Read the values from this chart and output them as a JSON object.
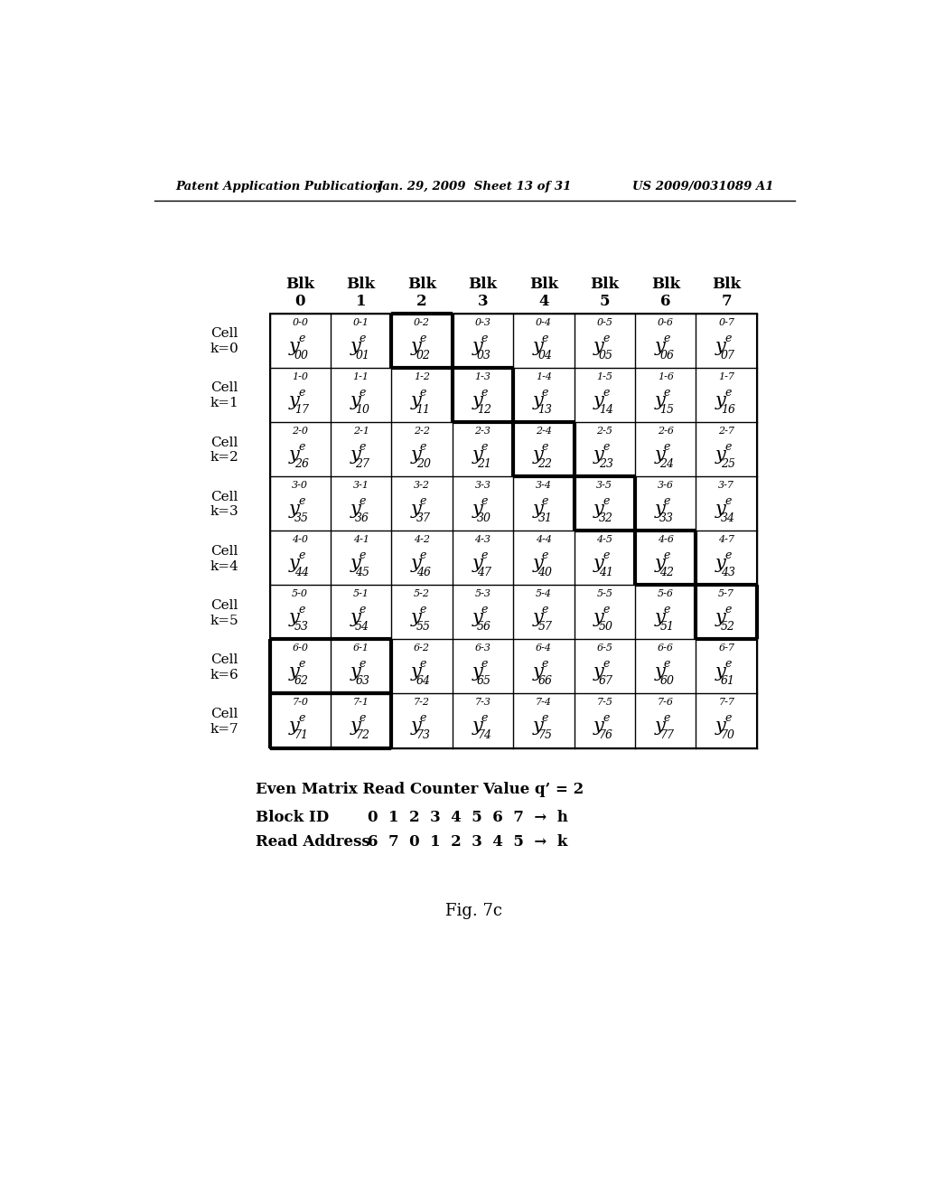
{
  "header_text_left": "Patent Application Publication",
  "header_text_mid": "Jan. 29, 2009  Sheet 13 of 31",
  "header_text_right": "US 2009/0031089 A1",
  "fig_label": "Fig. 7c",
  "caption_line1": "Even Matrix Read Counter Value q’ = 2",
  "caption_line2_label": "Block ID",
  "caption_line2_vals": "0  1  2  3  4  5  6  7  →  h",
  "caption_line3_label": "Read Address",
  "caption_line3_vals": "6  7  0  1  2  3  4  5  →  k",
  "col_headers": [
    "Blk\n0",
    "Blk\n1",
    "Blk\n2",
    "Blk\n3",
    "Blk\n4",
    "Blk\n5",
    "Blk\n6",
    "Blk\n7"
  ],
  "row_headers": [
    "Cell\nk=0",
    "Cell\nk=1",
    "Cell\nk=2",
    "Cell\nk=3",
    "Cell\nk=4",
    "Cell\nk=5",
    "Cell\nk=6",
    "Cell\nk=7"
  ],
  "cell_labels": [
    [
      "0-0",
      "0-1",
      "0-2",
      "0-3",
      "0-4",
      "0-5",
      "0-6",
      "0-7"
    ],
    [
      "1-0",
      "1-1",
      "1-2",
      "1-3",
      "1-4",
      "1-5",
      "1-6",
      "1-7"
    ],
    [
      "2-0",
      "2-1",
      "2-2",
      "2-3",
      "2-4",
      "2-5",
      "2-6",
      "2-7"
    ],
    [
      "3-0",
      "3-1",
      "3-2",
      "3-3",
      "3-4",
      "3-5",
      "3-6",
      "3-7"
    ],
    [
      "4-0",
      "4-1",
      "4-2",
      "4-3",
      "4-4",
      "4-5",
      "4-6",
      "4-7"
    ],
    [
      "5-0",
      "5-1",
      "5-2",
      "5-3",
      "5-4",
      "5-5",
      "5-6",
      "5-7"
    ],
    [
      "6-0",
      "6-1",
      "6-2",
      "6-3",
      "6-4",
      "6-5",
      "6-6",
      "6-7"
    ],
    [
      "7-0",
      "7-1",
      "7-2",
      "7-3",
      "7-4",
      "7-5",
      "7-6",
      "7-7"
    ]
  ],
  "cell_values": [
    [
      "00",
      "01",
      "02",
      "03",
      "04",
      "05",
      "06",
      "07"
    ],
    [
      "17",
      "10",
      "11",
      "12",
      "13",
      "14",
      "15",
      "16"
    ],
    [
      "26",
      "27",
      "20",
      "21",
      "22",
      "23",
      "24",
      "25"
    ],
    [
      "35",
      "36",
      "37",
      "30",
      "31",
      "32",
      "33",
      "34"
    ],
    [
      "44",
      "45",
      "46",
      "47",
      "40",
      "41",
      "42",
      "43"
    ],
    [
      "53",
      "54",
      "55",
      "56",
      "57",
      "50",
      "51",
      "52"
    ],
    [
      "62",
      "63",
      "64",
      "65",
      "66",
      "67",
      "60",
      "61"
    ],
    [
      "71",
      "72",
      "73",
      "74",
      "75",
      "76",
      "77",
      "70"
    ]
  ],
  "background_color": "#ffffff"
}
